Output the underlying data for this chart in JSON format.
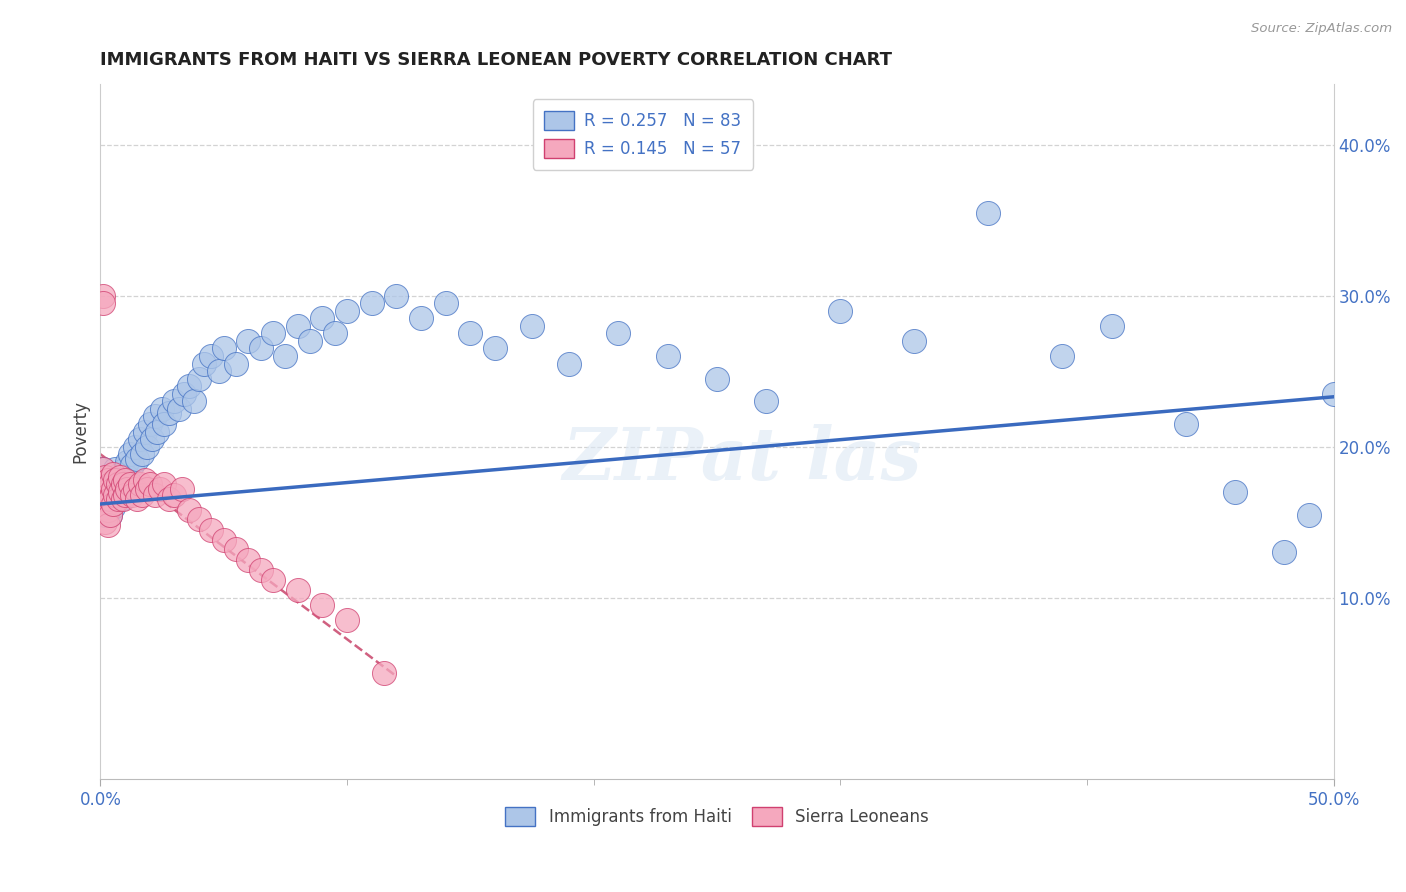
{
  "title": "IMMIGRANTS FROM HAITI VS SIERRA LEONEAN POVERTY CORRELATION CHART",
  "source": "Source: ZipAtlas.com",
  "ylabel": "Poverty",
  "xlim": [
    0.0,
    0.5
  ],
  "ylim": [
    -0.02,
    0.44
  ],
  "yticks": [
    0.1,
    0.2,
    0.3,
    0.4
  ],
  "ytick_labels": [
    "10.0%",
    "20.0%",
    "30.0%",
    "40.0%"
  ],
  "legend_label1": "Immigrants from Haiti",
  "legend_label2": "Sierra Leoneans",
  "color_blue": "#adc6e8",
  "color_pink": "#f5a8be",
  "color_blue_edge": "#4472c4",
  "color_pink_edge": "#d04070",
  "color_trend_blue": "#3a6abf",
  "color_trend_pink": "#d06080",
  "blue_x": [
    0.001,
    0.002,
    0.002,
    0.002,
    0.003,
    0.003,
    0.003,
    0.004,
    0.004,
    0.004,
    0.005,
    0.005,
    0.005,
    0.006,
    0.006,
    0.006,
    0.007,
    0.007,
    0.008,
    0.008,
    0.009,
    0.009,
    0.01,
    0.01,
    0.011,
    0.011,
    0.012,
    0.013,
    0.014,
    0.015,
    0.016,
    0.017,
    0.018,
    0.019,
    0.02,
    0.021,
    0.022,
    0.023,
    0.025,
    0.026,
    0.028,
    0.03,
    0.032,
    0.034,
    0.036,
    0.038,
    0.04,
    0.042,
    0.045,
    0.048,
    0.05,
    0.055,
    0.06,
    0.065,
    0.07,
    0.075,
    0.08,
    0.085,
    0.09,
    0.095,
    0.1,
    0.11,
    0.12,
    0.13,
    0.14,
    0.15,
    0.16,
    0.175,
    0.19,
    0.21,
    0.23,
    0.25,
    0.27,
    0.3,
    0.33,
    0.36,
    0.39,
    0.41,
    0.44,
    0.46,
    0.48,
    0.49,
    0.5
  ],
  "blue_y": [
    0.185,
    0.175,
    0.165,
    0.155,
    0.18,
    0.17,
    0.16,
    0.175,
    0.165,
    0.155,
    0.18,
    0.17,
    0.16,
    0.185,
    0.175,
    0.165,
    0.178,
    0.168,
    0.182,
    0.172,
    0.176,
    0.166,
    0.185,
    0.175,
    0.19,
    0.18,
    0.195,
    0.188,
    0.2,
    0.192,
    0.205,
    0.195,
    0.21,
    0.2,
    0.215,
    0.205,
    0.22,
    0.21,
    0.225,
    0.215,
    0.222,
    0.23,
    0.225,
    0.235,
    0.24,
    0.23,
    0.245,
    0.255,
    0.26,
    0.25,
    0.265,
    0.255,
    0.27,
    0.265,
    0.275,
    0.26,
    0.28,
    0.27,
    0.285,
    0.275,
    0.29,
    0.295,
    0.3,
    0.285,
    0.295,
    0.275,
    0.265,
    0.28,
    0.255,
    0.275,
    0.26,
    0.245,
    0.23,
    0.29,
    0.27,
    0.355,
    0.26,
    0.28,
    0.215,
    0.17,
    0.13,
    0.155,
    0.235
  ],
  "pink_x": [
    0.001,
    0.001,
    0.001,
    0.001,
    0.001,
    0.002,
    0.002,
    0.002,
    0.002,
    0.003,
    0.003,
    0.003,
    0.003,
    0.004,
    0.004,
    0.004,
    0.005,
    0.005,
    0.005,
    0.006,
    0.006,
    0.007,
    0.007,
    0.008,
    0.008,
    0.009,
    0.009,
    0.01,
    0.01,
    0.011,
    0.012,
    0.013,
    0.014,
    0.015,
    0.016,
    0.017,
    0.018,
    0.019,
    0.02,
    0.022,
    0.024,
    0.026,
    0.028,
    0.03,
    0.033,
    0.036,
    0.04,
    0.045,
    0.05,
    0.055,
    0.06,
    0.065,
    0.07,
    0.08,
    0.09,
    0.1,
    0.115
  ],
  "pink_y": [
    0.185,
    0.175,
    0.165,
    0.3,
    0.295,
    0.18,
    0.17,
    0.16,
    0.15,
    0.178,
    0.168,
    0.158,
    0.148,
    0.175,
    0.165,
    0.155,
    0.182,
    0.172,
    0.162,
    0.178,
    0.168,
    0.175,
    0.165,
    0.18,
    0.17,
    0.175,
    0.165,
    0.178,
    0.168,
    0.172,
    0.175,
    0.168,
    0.172,
    0.165,
    0.175,
    0.168,
    0.178,
    0.172,
    0.175,
    0.168,
    0.172,
    0.175,
    0.165,
    0.168,
    0.172,
    0.158,
    0.152,
    0.145,
    0.138,
    0.132,
    0.125,
    0.118,
    0.112,
    0.105,
    0.095,
    0.085,
    0.05
  ],
  "trend_blue_x0": 0.0,
  "trend_blue_x1": 0.5,
  "trend_blue_y0": 0.162,
  "trend_blue_y1": 0.233,
  "trend_pink_x0": 0.0,
  "trend_pink_x1": 0.12,
  "trend_pink_y0": 0.195,
  "trend_pink_y1": 0.048
}
